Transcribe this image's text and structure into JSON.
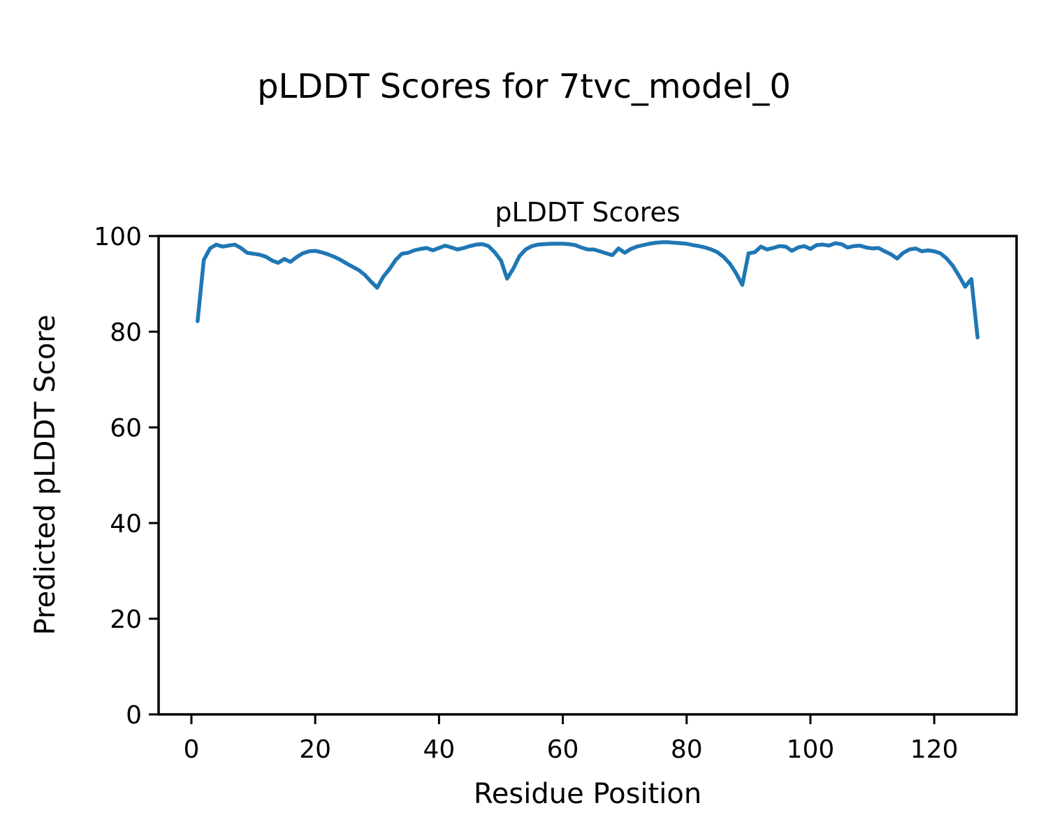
{
  "figure": {
    "suptitle": "pLDDT Scores for 7tvc_model_0",
    "axes_title": "pLDDT Scores",
    "xlabel": "Residue Position",
    "ylabel": "Predicted pLDDT Score"
  },
  "colors": {
    "line": "#1f77b4",
    "axes": "#000000",
    "background": "#ffffff",
    "text": "#000000"
  },
  "chart_data": {
    "type": "line",
    "title": "pLDDT Scores",
    "suptitle": "pLDDT Scores for 7tvc_model_0",
    "xlabel": "Residue Position",
    "ylabel": "Predicted pLDDT Score",
    "xlim": [
      -5.3,
      133.3
    ],
    "ylim": [
      0,
      100
    ],
    "xticks": [
      0,
      20,
      40,
      60,
      80,
      100,
      120
    ],
    "yticks": [
      0,
      20,
      40,
      60,
      80,
      100
    ],
    "grid": false,
    "legend": "none",
    "line_color": "#1f77b4",
    "series": [
      {
        "name": "pLDDT",
        "x": [
          1,
          2,
          3,
          4,
          5,
          6,
          7,
          8,
          9,
          10,
          11,
          12,
          13,
          14,
          15,
          16,
          17,
          18,
          19,
          20,
          21,
          22,
          23,
          24,
          25,
          26,
          27,
          28,
          29,
          30,
          31,
          32,
          33,
          34,
          35,
          36,
          37,
          38,
          39,
          40,
          41,
          42,
          43,
          44,
          45,
          46,
          47,
          48,
          49,
          50,
          51,
          52,
          53,
          54,
          55,
          56,
          57,
          58,
          59,
          60,
          61,
          62,
          63,
          64,
          65,
          66,
          67,
          68,
          69,
          70,
          71,
          72,
          73,
          74,
          75,
          76,
          77,
          78,
          79,
          80,
          81,
          82,
          83,
          84,
          85,
          86,
          87,
          88,
          89,
          90,
          91,
          92,
          93,
          94,
          95,
          96,
          97,
          98,
          99,
          100,
          101,
          102,
          103,
          104,
          105,
          106,
          107,
          108,
          109,
          110,
          111,
          112,
          113,
          114,
          115,
          116,
          117,
          118,
          119,
          120,
          121,
          122,
          123,
          124,
          125,
          126,
          127
        ],
        "values": [
          82.2,
          95.0,
          97.4,
          98.2,
          97.8,
          98.0,
          98.2,
          97.5,
          96.5,
          96.3,
          96.1,
          95.7,
          94.9,
          94.4,
          95.2,
          94.6,
          95.6,
          96.4,
          96.8,
          96.9,
          96.6,
          96.2,
          95.7,
          95.1,
          94.3,
          93.6,
          92.9,
          91.9,
          90.5,
          89.2,
          91.5,
          93.1,
          95.0,
          96.3,
          96.5,
          97.0,
          97.3,
          97.5,
          97.0,
          97.5,
          98.0,
          97.6,
          97.2,
          97.5,
          97.9,
          98.2,
          98.3,
          97.9,
          96.6,
          94.9,
          91.1,
          93.2,
          95.8,
          97.2,
          97.9,
          98.2,
          98.3,
          98.4,
          98.4,
          98.4,
          98.3,
          98.1,
          97.6,
          97.2,
          97.2,
          96.8,
          96.4,
          96.0,
          97.4,
          96.5,
          97.3,
          97.8,
          98.1,
          98.4,
          98.6,
          98.7,
          98.7,
          98.6,
          98.5,
          98.4,
          98.1,
          97.9,
          97.6,
          97.2,
          96.6,
          95.6,
          94.2,
          92.2,
          89.8,
          96.4,
          96.6,
          97.8,
          97.2,
          97.5,
          97.9,
          97.8,
          96.9,
          97.6,
          97.9,
          97.3,
          98.1,
          98.2,
          98.0,
          98.5,
          98.3,
          97.6,
          97.9,
          98.0,
          97.6,
          97.4,
          97.5,
          96.8,
          96.2,
          95.3,
          96.5,
          97.2,
          97.4,
          96.8,
          97.0,
          96.8,
          96.4,
          95.3,
          93.8,
          91.7,
          89.4,
          91.0,
          78.8
        ]
      }
    ]
  }
}
